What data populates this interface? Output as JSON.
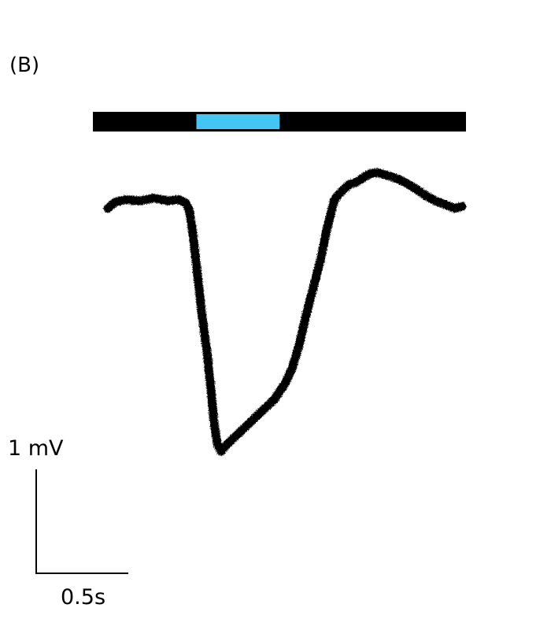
{
  "panel_label": "(B)",
  "colors": {
    "trace": "#000000",
    "stimulus_bar": "#000000",
    "stimulus_on": "#44c5f3"
  },
  "scale_bar": {
    "vertical_label": "1 mV",
    "vertical_value": 1,
    "vertical_unit": "mV",
    "horizontal_label": "0.5s",
    "horizontal_value": 0.5,
    "horizontal_unit": "s"
  },
  "chart_data": {
    "type": "line",
    "title": "",
    "xlabel": "",
    "ylabel": "",
    "x_unit": "s",
    "y_unit": "mV",
    "xlim": [
      0,
      2.0
    ],
    "grid": false,
    "legend": "none",
    "stimulus": {
      "start": 0.5,
      "end": 0.97
    },
    "series": [
      {
        "x": [
          0.0,
          0.04,
          0.1,
          0.18,
          0.26,
          0.34,
          0.4,
          0.44,
          0.46,
          0.48,
          0.5,
          0.53,
          0.56,
          0.58,
          0.6,
          0.62,
          0.64,
          0.66,
          0.7,
          0.76,
          0.82,
          0.88,
          0.94,
          1.0,
          1.04,
          1.08,
          1.12,
          1.16,
          1.2,
          1.24,
          1.28,
          1.32,
          1.36,
          1.4,
          1.44,
          1.48,
          1.52,
          1.56,
          1.6,
          1.64,
          1.68,
          1.72,
          1.76,
          1.8,
          1.85,
          1.9,
          1.96,
          2.0
        ],
        "y": [
          -0.03,
          0.06,
          0.1,
          0.08,
          0.12,
          0.08,
          0.1,
          0.05,
          -0.05,
          -0.4,
          -0.86,
          -1.58,
          -2.15,
          -2.65,
          -3.2,
          -3.52,
          -3.62,
          -3.55,
          -3.45,
          -3.3,
          -3.15,
          -3.0,
          -2.85,
          -2.62,
          -2.4,
          -2.05,
          -1.6,
          -1.2,
          -0.8,
          -0.3,
          0.1,
          0.22,
          0.32,
          0.35,
          0.42,
          0.48,
          0.5,
          0.47,
          0.44,
          0.4,
          0.35,
          0.29,
          0.22,
          0.15,
          0.08,
          0.03,
          -0.03,
          0.0
        ]
      }
    ]
  }
}
